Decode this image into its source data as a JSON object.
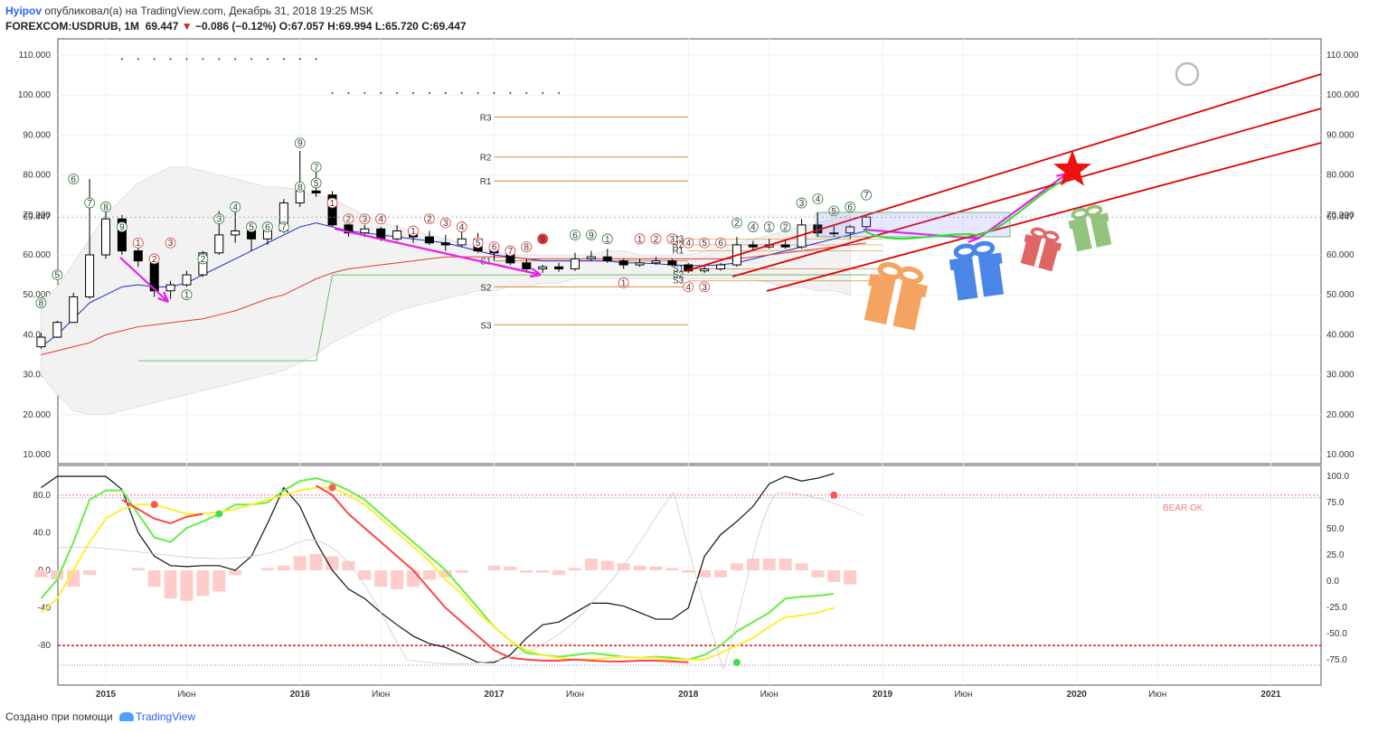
{
  "header": {
    "author": "Hyipov",
    "published_text": "опубликовал(а) на TradingView.com, Декабрь 31, 2018 19:25 MSK",
    "symbol": "FOREXCOM:USDRUB, 1M",
    "last": "69.447",
    "arrow": "▼",
    "change": "−0.086 (−0.12%)",
    "o_label": "O:",
    "o": "67.057",
    "h_label": "H:",
    "h": "69.994",
    "l_label": "L:",
    "l": "65.720",
    "c_label": "C:",
    "c": "69.447"
  },
  "footer": {
    "created_with": "Создано при помощи",
    "brand": "TradingView"
  },
  "colors": {
    "up_candle": "#ffffff",
    "down_candle": "#000000",
    "ema_blue": "#1a2bd6",
    "ema_red": "#e53935",
    "trend_magenta": "#e91ee9",
    "channel_red": "#e00000",
    "pivot": "#d98c3a",
    "osc_green": "#66ee44",
    "osc_yellow": "#ffee33",
    "osc_red": "#ff4444",
    "hist": "#ffcccc"
  },
  "chart_data": [
    {
      "type": "candlestick",
      "title": "FOREXCOM:USDRUB, 1M",
      "ylim": [
        5,
        112
      ],
      "y_ticks": [
        "110.000",
        "100.000",
        "90.000",
        "80.000",
        "70.000",
        "60.000",
        "50.000",
        "40.000",
        "30.000",
        "20.000",
        "10.000"
      ],
      "y_ticks_values": [
        110,
        100,
        90,
        80,
        70,
        60,
        50,
        40,
        30,
        20,
        10
      ],
      "last_price_label": "69.447",
      "last_price": 69.447,
      "x_ticks": [
        "2015",
        "Июн",
        "2016",
        "Июн",
        "2017",
        "Июн",
        "2018",
        "Июн",
        "2019",
        "Июн",
        "2020",
        "Июн",
        "2021"
      ],
      "x_ticks_dates": [
        "2015-01",
        "2015-06",
        "2016-01",
        "2016-06",
        "2017-01",
        "2017-06",
        "2018-01",
        "2018-06",
        "2019-01",
        "2019-06",
        "2020-01",
        "2020-06",
        "2021-01"
      ],
      "candles": [
        {
          "date": "2014-09",
          "o": 37.0,
          "h": 40.5,
          "l": 36.5,
          "c": 39.4
        },
        {
          "date": "2014-10",
          "o": 39.4,
          "h": 43.5,
          "l": 39.2,
          "c": 43.1
        },
        {
          "date": "2014-11",
          "o": 43.1,
          "h": 50.5,
          "l": 43.0,
          "c": 49.5
        },
        {
          "date": "2014-12",
          "o": 49.5,
          "h": 79.0,
          "l": 49.0,
          "c": 60.0
        },
        {
          "date": "2015-01",
          "o": 60.0,
          "h": 71.0,
          "l": 59.0,
          "c": 69.0
        },
        {
          "date": "2015-02",
          "o": 69.0,
          "h": 70.0,
          "l": 60.0,
          "c": 61.0
        },
        {
          "date": "2015-03",
          "o": 61.0,
          "h": 63.0,
          "l": 57.0,
          "c": 58.5
        },
        {
          "date": "2015-04",
          "o": 58.0,
          "h": 58.5,
          "l": 49.5,
          "c": 51.0
        },
        {
          "date": "2015-05",
          "o": 51.0,
          "h": 53.5,
          "l": 49.0,
          "c": 52.5
        },
        {
          "date": "2015-06",
          "o": 52.5,
          "h": 56.0,
          "l": 52.0,
          "c": 55.0
        },
        {
          "date": "2015-07",
          "o": 55.0,
          "h": 61.0,
          "l": 54.5,
          "c": 60.5
        },
        {
          "date": "2015-08",
          "o": 60.5,
          "h": 71.0,
          "l": 60.0,
          "c": 65.0
        },
        {
          "date": "2015-09",
          "o": 65.0,
          "h": 72.0,
          "l": 63.0,
          "c": 66.0
        },
        {
          "date": "2015-10",
          "o": 66.0,
          "h": 67.5,
          "l": 61.0,
          "c": 64.0
        },
        {
          "date": "2015-11",
          "o": 64.0,
          "h": 67.0,
          "l": 62.5,
          "c": 66.0
        },
        {
          "date": "2015-12",
          "o": 66.0,
          "h": 74.0,
          "l": 65.5,
          "c": 73.0
        },
        {
          "date": "2016-01",
          "o": 73.0,
          "h": 86.0,
          "l": 72.0,
          "c": 76.0
        },
        {
          "date": "2016-02",
          "o": 76.0,
          "h": 81.0,
          "l": 74.5,
          "c": 75.5
        },
        {
          "date": "2016-03",
          "o": 75.0,
          "h": 76.0,
          "l": 67.0,
          "c": 67.5
        },
        {
          "date": "2016-04",
          "o": 67.5,
          "h": 69.0,
          "l": 64.5,
          "c": 65.5
        },
        {
          "date": "2016-05",
          "o": 65.5,
          "h": 67.5,
          "l": 64.5,
          "c": 66.5
        },
        {
          "date": "2016-06",
          "o": 66.5,
          "h": 67.0,
          "l": 63.5,
          "c": 64.0
        },
        {
          "date": "2016-07",
          "o": 64.0,
          "h": 67.5,
          "l": 63.5,
          "c": 66.0
        },
        {
          "date": "2016-08",
          "o": 66.0,
          "h": 66.5,
          "l": 63.0,
          "c": 64.5
        },
        {
          "date": "2016-09",
          "o": 64.5,
          "h": 66.0,
          "l": 62.5,
          "c": 63.0
        },
        {
          "date": "2016-10",
          "o": 63.0,
          "h": 65.0,
          "l": 61.0,
          "c": 62.5
        },
        {
          "date": "2016-11",
          "o": 62.5,
          "h": 67.0,
          "l": 62.0,
          "c": 64.0
        },
        {
          "date": "2016-12",
          "o": 64.0,
          "h": 65.5,
          "l": 60.5,
          "c": 61.0
        },
        {
          "date": "2017-01",
          "o": 61.0,
          "h": 62.0,
          "l": 58.5,
          "c": 60.5
        },
        {
          "date": "2017-02",
          "o": 60.0,
          "h": 61.0,
          "l": 57.5,
          "c": 58.0
        },
        {
          "date": "2017-03",
          "o": 58.0,
          "h": 59.0,
          "l": 56.0,
          "c": 56.5
        },
        {
          "date": "2017-04",
          "o": 56.5,
          "h": 57.5,
          "l": 55.5,
          "c": 57.0
        },
        {
          "date": "2017-05",
          "o": 57.0,
          "h": 58.0,
          "l": 55.8,
          "c": 56.5
        },
        {
          "date": "2017-06",
          "o": 56.5,
          "h": 60.5,
          "l": 56.0,
          "c": 59.0
        },
        {
          "date": "2017-07",
          "o": 59.0,
          "h": 61.0,
          "l": 58.5,
          "c": 59.5
        },
        {
          "date": "2017-08",
          "o": 59.5,
          "h": 61.5,
          "l": 58.0,
          "c": 58.5
        },
        {
          "date": "2017-09",
          "o": 58.5,
          "h": 59.0,
          "l": 56.5,
          "c": 57.5
        },
        {
          "date": "2017-10",
          "o": 57.5,
          "h": 59.0,
          "l": 57.0,
          "c": 58.0
        },
        {
          "date": "2017-11",
          "o": 58.0,
          "h": 59.5,
          "l": 57.5,
          "c": 58.5
        },
        {
          "date": "2017-12",
          "o": 58.5,
          "h": 59.0,
          "l": 57.0,
          "c": 57.5
        },
        {
          "date": "2018-01",
          "o": 57.5,
          "h": 58.0,
          "l": 55.5,
          "c": 56.0
        },
        {
          "date": "2018-02",
          "o": 56.0,
          "h": 57.5,
          "l": 55.5,
          "c": 56.5
        },
        {
          "date": "2018-03",
          "o": 56.5,
          "h": 58.0,
          "l": 56.0,
          "c": 57.5
        },
        {
          "date": "2018-04",
          "o": 57.5,
          "h": 64.5,
          "l": 57.0,
          "c": 62.5
        },
        {
          "date": "2018-05",
          "o": 62.5,
          "h": 63.5,
          "l": 61.0,
          "c": 62.0
        },
        {
          "date": "2018-06",
          "o": 62.0,
          "h": 64.0,
          "l": 61.5,
          "c": 62.5
        },
        {
          "date": "2018-07",
          "o": 62.5,
          "h": 63.5,
          "l": 61.5,
          "c": 62.0
        },
        {
          "date": "2018-08",
          "o": 62.0,
          "h": 69.0,
          "l": 61.5,
          "c": 67.5
        },
        {
          "date": "2018-09",
          "o": 67.5,
          "h": 70.5,
          "l": 64.5,
          "c": 65.5
        },
        {
          "date": "2018-10",
          "o": 65.5,
          "h": 67.5,
          "l": 64.5,
          "c": 65.5
        },
        {
          "date": "2018-11",
          "o": 65.5,
          "h": 67.5,
          "l": 64.0,
          "c": 67.0
        },
        {
          "date": "2018-12",
          "o": 67.057,
          "h": 69.994,
          "l": 65.72,
          "c": 69.447
        }
      ],
      "pivots": [
        {
          "label": "R3",
          "value": 94.5
        },
        {
          "label": "R2",
          "value": 84.5
        },
        {
          "label": "R1",
          "value": 78.5
        },
        {
          "label": "S1",
          "value": 58.5
        },
        {
          "label": "S2",
          "value": 52.0
        },
        {
          "label": "S3",
          "value": 42.5
        }
      ],
      "pivots_2018": [
        {
          "label": "R3",
          "value": 64.0
        },
        {
          "label": "R2",
          "value": 62.5
        },
        {
          "label": "R1",
          "value": 61.0
        },
        {
          "label": "S1",
          "value": 56.5
        },
        {
          "label": "S2",
          "value": 55.0
        },
        {
          "label": "S3",
          "value": 53.5
        }
      ],
      "td_counts_green": [
        "1",
        "2",
        "3",
        "4",
        "5",
        "6",
        "7",
        "8",
        "9"
      ],
      "td_counts_red": [
        "1",
        "2",
        "3",
        "4",
        "5",
        "6",
        "7",
        "8",
        "9"
      ],
      "dots_row_110_from": "2015-02",
      "dots_row_110_to": "2016-02",
      "dots_row_100_from": "2016-03",
      "dots_row_100_to": "2017-05"
    },
    {
      "type": "line",
      "title": "",
      "ylim_left": [
        -110,
        105
      ],
      "y_ticks_left": [
        "80.0",
        "40.0",
        "0.0",
        "-40",
        "-80"
      ],
      "y_ticks_left_values": [
        80,
        40,
        0,
        -40,
        -80
      ],
      "y_ticks_right": [
        "100.0",
        "75.0",
        "50.0",
        "25.0",
        "0.0",
        "-25.0",
        "-50.0",
        "-75.0"
      ],
      "y_ticks_right_values": [
        100,
        75,
        50,
        25,
        0,
        -25,
        -50,
        -75
      ],
      "annotation": "BEAR OK",
      "series": [
        {
          "color": "#111111",
          "values": [
            88,
            100,
            100,
            100,
            100,
            86,
            40,
            15,
            5,
            4,
            5,
            5,
            0,
            15,
            50,
            88,
            68,
            30,
            0,
            -20,
            -30,
            -45,
            -58,
            -70,
            -78,
            -82,
            -90,
            -98,
            -98,
            -90,
            -72,
            -58,
            -55,
            -45,
            -35,
            -35,
            -38,
            -45,
            -52,
            -52,
            -40,
            15,
            38,
            52,
            68,
            92,
            100,
            95,
            98,
            103
          ]
        },
        {
          "color": "#66ee44",
          "values": [
            -30,
            -10,
            30,
            75,
            85,
            85,
            60,
            35,
            30,
            45,
            52,
            60,
            70,
            70,
            72,
            85,
            95,
            98,
            93,
            85,
            75,
            60,
            45,
            30,
            15,
            0,
            -20,
            -40,
            -60,
            -75,
            -88,
            -90,
            -92,
            -90,
            -88,
            -90,
            -92,
            -93,
            -92,
            -93,
            -95,
            -90,
            -80,
            -65,
            -55,
            -45,
            -30,
            -28,
            -27,
            -25
          ]
        },
        {
          "color": "#ffee33",
          "values": [
            -45,
            -30,
            0,
            30,
            55,
            65,
            70,
            70,
            65,
            60,
            60,
            62,
            65,
            70,
            75,
            80,
            85,
            88,
            88,
            80,
            70,
            55,
            40,
            25,
            10,
            -10,
            -25,
            -45,
            -60,
            -75,
            -85,
            -90,
            -93,
            -95,
            -95,
            -93,
            -92,
            -93,
            -93,
            -95,
            -95,
            -95,
            -88,
            -80,
            -72,
            -60,
            -50,
            -48,
            -45,
            -40
          ]
        },
        {
          "color": "#ff4444",
          "values": [
            null,
            null,
            null,
            null,
            null,
            75,
            65,
            55,
            50,
            57,
            60,
            null,
            null,
            null,
            null,
            null,
            null,
            90,
            80,
            60,
            45,
            30,
            15,
            0,
            -20,
            -40,
            -55,
            -70,
            -85,
            -93,
            -95,
            -96,
            -96,
            -95,
            -96,
            -97,
            -97,
            -96,
            -96,
            -97,
            -98,
            null,
            null,
            null,
            null,
            null,
            null,
            null,
            null,
            null
          ]
        }
      ],
      "histogram": [
        -15,
        -20,
        -35,
        -10,
        0,
        0,
        5,
        -35,
        -60,
        -65,
        -55,
        -45,
        -10,
        0,
        5,
        10,
        30,
        35,
        30,
        20,
        -20,
        -35,
        -40,
        -35,
        -20,
        -15,
        -5,
        0,
        10,
        8,
        -5,
        -5,
        -10,
        5,
        25,
        20,
        15,
        10,
        8,
        5,
        -5,
        -15,
        -15,
        15,
        25,
        25,
        25,
        15,
        -15,
        -25,
        -30
      ],
      "points": [
        {
          "date": "2015-04",
          "value": 70,
          "color": "#ff5555"
        },
        {
          "date": "2015-08",
          "value": 60,
          "color": "#44dd44"
        },
        {
          "date": "2016-03",
          "value": 88,
          "color": "#ff5555"
        },
        {
          "date": "2018-04",
          "value": -98,
          "color": "#44dd44"
        },
        {
          "date": "2018-10",
          "value": 80,
          "color": "#ff5555"
        }
      ]
    }
  ]
}
